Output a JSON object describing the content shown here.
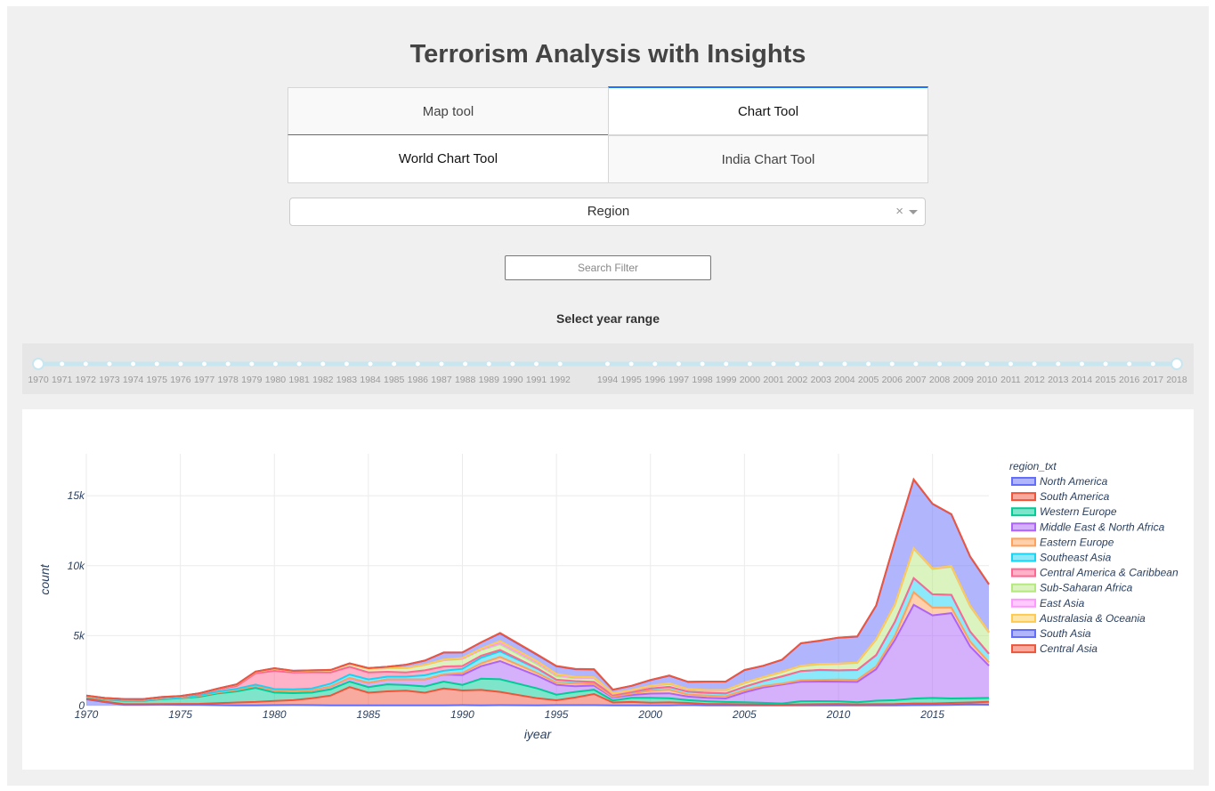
{
  "title": "Terrorism Analysis with Insights",
  "tabs_main": [
    {
      "label": "Map tool",
      "active": false
    },
    {
      "label": "Chart Tool",
      "active": true
    }
  ],
  "tabs_sub": [
    {
      "label": "World Chart Tool",
      "active": true
    },
    {
      "label": "India Chart Tool",
      "active": false
    }
  ],
  "dropdown": {
    "value": "Region",
    "clear_icon": "×",
    "arrow_icon": "chevron-down-icon"
  },
  "search": {
    "placeholder": "Search Filter"
  },
  "slider": {
    "label": "Select year range",
    "marks": [
      "1970",
      "1971",
      "1972",
      "1973",
      "1974",
      "1975",
      "1976",
      "1977",
      "1978",
      "1979",
      "1980",
      "1981",
      "1982",
      "1983",
      "1984",
      "1985",
      "1986",
      "1987",
      "1988",
      "1989",
      "1990",
      "1991",
      "1992",
      "1994",
      "1995",
      "1996",
      "1997",
      "1998",
      "1999",
      "2000",
      "2001",
      "2002",
      "2003",
      "2004",
      "2005",
      "2006",
      "2007",
      "2008",
      "2009",
      "2010",
      "2011",
      "2012",
      "2013",
      "2014",
      "2015",
      "2016",
      "2017",
      "2018"
    ],
    "range": [
      "1970",
      "2018"
    ]
  },
  "chart_data": {
    "type": "area",
    "xlabel": "iyear",
    "ylabel": "count",
    "legend_title": "region_txt",
    "legend_position": "right",
    "xlim": [
      1970,
      2018
    ],
    "ylim": [
      0,
      18000
    ],
    "x_ticks": [
      1970,
      1975,
      1980,
      1985,
      1990,
      1995,
      2000,
      2005,
      2010,
      2015
    ],
    "y_ticks": [
      0,
      5000,
      10000,
      15000
    ],
    "y_tick_labels": [
      "0",
      "5k",
      "10k",
      "15k"
    ],
    "x": [
      1970,
      1971,
      1972,
      1973,
      1974,
      1975,
      1976,
      1977,
      1978,
      1979,
      1980,
      1981,
      1982,
      1983,
      1984,
      1985,
      1986,
      1987,
      1988,
      1989,
      1990,
      1991,
      1992,
      1994,
      1995,
      1996,
      1997,
      1998,
      1999,
      2000,
      2001,
      2002,
      2003,
      2004,
      2005,
      2006,
      2007,
      2008,
      2009,
      2010,
      2011,
      2012,
      2013,
      2014,
      2015,
      2016,
      2017,
      2018
    ],
    "series": [
      {
        "name": "North America",
        "color": "#636efa",
        "values": [
          450,
          250,
          60,
          60,
          70,
          60,
          60,
          30,
          20,
          20,
          30,
          40,
          30,
          20,
          20,
          20,
          20,
          20,
          20,
          20,
          30,
          20,
          30,
          20,
          30,
          30,
          30,
          20,
          10,
          10,
          20,
          40,
          10,
          10,
          10,
          10,
          10,
          20,
          20,
          20,
          10,
          20,
          20,
          30,
          40,
          60,
          90,
          70
        ]
      },
      {
        "name": "South America",
        "color": "#ef553b",
        "values": [
          50,
          30,
          40,
          40,
          40,
          60,
          70,
          140,
          200,
          240,
          300,
          350,
          500,
          700,
          1300,
          900,
          1000,
          1050,
          900,
          1200,
          1050,
          1100,
          950,
          500,
          350,
          550,
          800,
          200,
          250,
          200,
          210,
          150,
          100,
          100,
          80,
          70,
          60,
          70,
          80,
          90,
          80,
          80,
          90,
          120,
          110,
          130,
          130,
          200
        ]
      },
      {
        "name": "Western Europe",
        "color": "#00cc96",
        "values": [
          100,
          160,
          250,
          240,
          350,
          400,
          500,
          700,
          800,
          1000,
          600,
          500,
          400,
          450,
          400,
          400,
          500,
          400,
          450,
          500,
          400,
          800,
          900,
          700,
          400,
          400,
          300,
          150,
          300,
          350,
          300,
          200,
          200,
          150,
          150,
          120,
          80,
          220,
          220,
          200,
          150,
          250,
          280,
          350,
          400,
          320,
          310,
          280
        ]
      },
      {
        "name": "Middle East & North Africa",
        "color": "#ab63fa",
        "values": [
          30,
          30,
          30,
          30,
          40,
          40,
          70,
          80,
          100,
          150,
          150,
          150,
          150,
          200,
          250,
          300,
          350,
          400,
          500,
          500,
          700,
          900,
          1300,
          900,
          700,
          400,
          300,
          200,
          200,
          300,
          350,
          250,
          250,
          250,
          700,
          1100,
          1350,
          1400,
          1400,
          1400,
          1450,
          2250,
          4300,
          6700,
          5900,
          6100,
          3700,
          2300
        ]
      },
      {
        "name": "Eastern Europe",
        "color": "#ffa15a",
        "values": [
          0,
          0,
          0,
          0,
          0,
          0,
          0,
          0,
          0,
          0,
          0,
          0,
          0,
          0,
          0,
          0,
          0,
          0,
          0,
          20,
          150,
          200,
          300,
          200,
          150,
          200,
          100,
          60,
          100,
          200,
          250,
          150,
          150,
          150,
          150,
          100,
          80,
          100,
          120,
          150,
          150,
          200,
          300,
          900,
          550,
          400,
          350,
          250
        ]
      },
      {
        "name": "Southeast Asia",
        "color": "#19d3f3",
        "values": [
          30,
          30,
          30,
          30,
          30,
          30,
          50,
          60,
          80,
          90,
          100,
          120,
          150,
          200,
          250,
          250,
          200,
          200,
          300,
          250,
          300,
          400,
          400,
          300,
          200,
          150,
          150,
          100,
          100,
          150,
          200,
          200,
          200,
          200,
          250,
          350,
          500,
          650,
          700,
          650,
          700,
          800,
          1000,
          1000,
          950,
          900,
          700,
          600
        ]
      },
      {
        "name": "Central America & Caribbean",
        "color": "#ff6692",
        "values": [
          20,
          30,
          40,
          40,
          50,
          60,
          80,
          150,
          200,
          800,
          1300,
          1200,
          1150,
          800,
          550,
          500,
          350,
          300,
          350,
          300,
          200,
          150,
          100,
          30,
          20,
          20,
          10,
          10,
          10,
          10,
          10,
          10,
          10,
          10,
          10,
          10,
          10,
          10,
          10,
          10,
          10,
          10,
          10,
          10,
          10,
          10,
          10,
          10
        ]
      },
      {
        "name": "Sub-Saharan Africa",
        "color": "#b6e880",
        "values": [
          10,
          10,
          10,
          10,
          20,
          20,
          40,
          50,
          100,
          100,
          150,
          100,
          100,
          150,
          200,
          250,
          250,
          300,
          400,
          450,
          500,
          400,
          400,
          300,
          250,
          200,
          250,
          100,
          100,
          150,
          200,
          150,
          150,
          200,
          250,
          250,
          300,
          350,
          400,
          450,
          500,
          1100,
          1200,
          2100,
          1800,
          2000,
          1800,
          1500
        ]
      },
      {
        "name": "East Asia",
        "color": "#ff97ff",
        "values": [
          0,
          0,
          0,
          0,
          0,
          0,
          0,
          0,
          0,
          0,
          0,
          0,
          0,
          0,
          0,
          0,
          0,
          0,
          0,
          20,
          20,
          50,
          80,
          100,
          80,
          50,
          50,
          20,
          20,
          20,
          20,
          20,
          20,
          20,
          20,
          20,
          20,
          20,
          20,
          20,
          20,
          20,
          30,
          30,
          30,
          30,
          30,
          30
        ]
      },
      {
        "name": "Australasia & Oceania",
        "color": "#fecb52",
        "values": [
          0,
          0,
          0,
          0,
          0,
          0,
          0,
          0,
          0,
          0,
          0,
          0,
          0,
          0,
          0,
          0,
          0,
          0,
          0,
          30,
          50,
          50,
          150,
          100,
          80,
          50,
          40,
          20,
          20,
          30,
          30,
          20,
          20,
          20,
          20,
          10,
          10,
          10,
          10,
          10,
          10,
          10,
          10,
          10,
          20,
          20,
          20,
          20
        ]
      },
      {
        "name": "South Asia",
        "color": "#636efa",
        "values": [
          30,
          0,
          10,
          10,
          10,
          20,
          10,
          10,
          20,
          30,
          40,
          30,
          40,
          30,
          50,
          60,
          100,
          250,
          300,
          500,
          400,
          450,
          550,
          450,
          550,
          550,
          550,
          250,
          300,
          400,
          550,
          500,
          600,
          600,
          900,
          800,
          850,
          1600,
          1650,
          1850,
          1850,
          2400,
          4500,
          4900,
          4600,
          3700,
          3500,
          3400
        ]
      },
      {
        "name": "Central Asia",
        "color": "#ef553b",
        "values": [
          0,
          0,
          0,
          0,
          0,
          0,
          0,
          0,
          0,
          0,
          0,
          0,
          0,
          0,
          0,
          0,
          0,
          0,
          0,
          0,
          0,
          0,
          30,
          30,
          20,
          20,
          20,
          10,
          10,
          10,
          10,
          10,
          10,
          10,
          10,
          10,
          10,
          10,
          10,
          10,
          10,
          10,
          20,
          20,
          20,
          20,
          20,
          20
        ]
      }
    ]
  }
}
